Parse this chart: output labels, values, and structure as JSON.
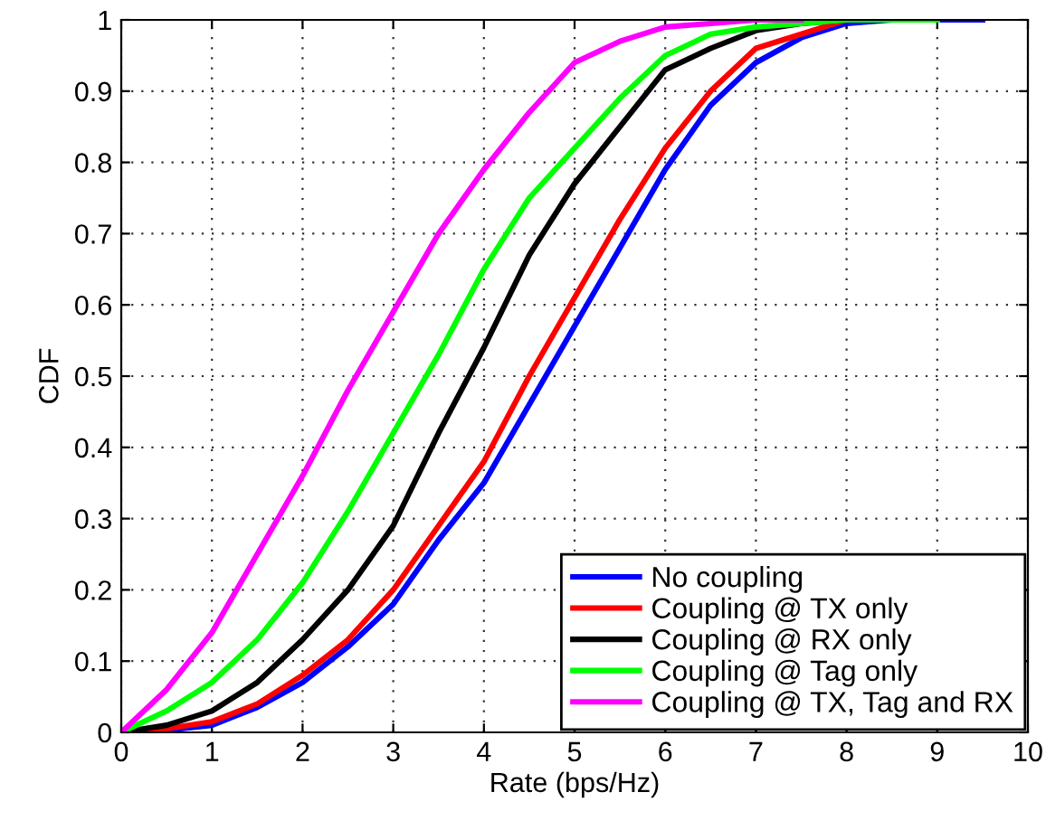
{
  "chart_data": {
    "type": "line",
    "xlabel": "Rate (bps/Hz)",
    "ylabel": "CDF",
    "xlim": [
      0,
      10
    ],
    "ylim": [
      0,
      1
    ],
    "xticks": [
      0,
      1,
      2,
      3,
      4,
      5,
      6,
      7,
      8,
      9,
      10
    ],
    "yticks": [
      0,
      0.1,
      0.2,
      0.3,
      0.4,
      0.5,
      0.6,
      0.7,
      0.8,
      0.9,
      1
    ],
    "grid": true,
    "legend": "bottom right",
    "line_style": "solid",
    "x": [
      0,
      0.5,
      1,
      1.5,
      2,
      2.5,
      3,
      3.5,
      4,
      4.5,
      5,
      5.5,
      6,
      6.5,
      7,
      7.5,
      8,
      8.5,
      9,
      9.5
    ],
    "series": [
      {
        "name": "No coupling",
        "color": "#0000ff",
        "values": [
          0,
          0.003,
          0.01,
          0.035,
          0.07,
          0.12,
          0.18,
          0.27,
          0.35,
          0.46,
          0.57,
          0.68,
          0.79,
          0.88,
          0.94,
          0.975,
          0.995,
          1,
          1,
          1
        ]
      },
      {
        "name": "Coupling @ TX only",
        "color": "#ff0000",
        "values": [
          0,
          0.005,
          0.015,
          0.04,
          0.08,
          0.13,
          0.2,
          0.29,
          0.38,
          0.5,
          0.61,
          0.72,
          0.82,
          0.9,
          0.96,
          0.98,
          1,
          null,
          null,
          null
        ]
      },
      {
        "name": "Coupling @ RX only",
        "color": "#000000",
        "values": [
          0,
          0.01,
          0.03,
          0.07,
          0.13,
          0.2,
          0.29,
          0.42,
          0.54,
          0.67,
          0.77,
          0.85,
          0.93,
          0.96,
          0.985,
          0.995,
          1,
          1,
          null,
          null
        ]
      },
      {
        "name": "Coupling @ Tag only",
        "color": "#00ff00",
        "values": [
          0,
          0.03,
          0.07,
          0.13,
          0.21,
          0.31,
          0.42,
          0.53,
          0.65,
          0.75,
          0.82,
          0.89,
          0.95,
          0.98,
          0.99,
          0.995,
          1,
          1,
          1,
          null
        ]
      },
      {
        "name": "Coupling @ TX, Tag and RX",
        "color": "#ff00ff",
        "values": [
          0,
          0.06,
          0.14,
          0.25,
          0.36,
          0.48,
          0.59,
          0.7,
          0.79,
          0.87,
          0.94,
          0.97,
          0.99,
          0.995,
          1,
          1,
          null,
          null,
          null,
          null
        ]
      }
    ]
  }
}
